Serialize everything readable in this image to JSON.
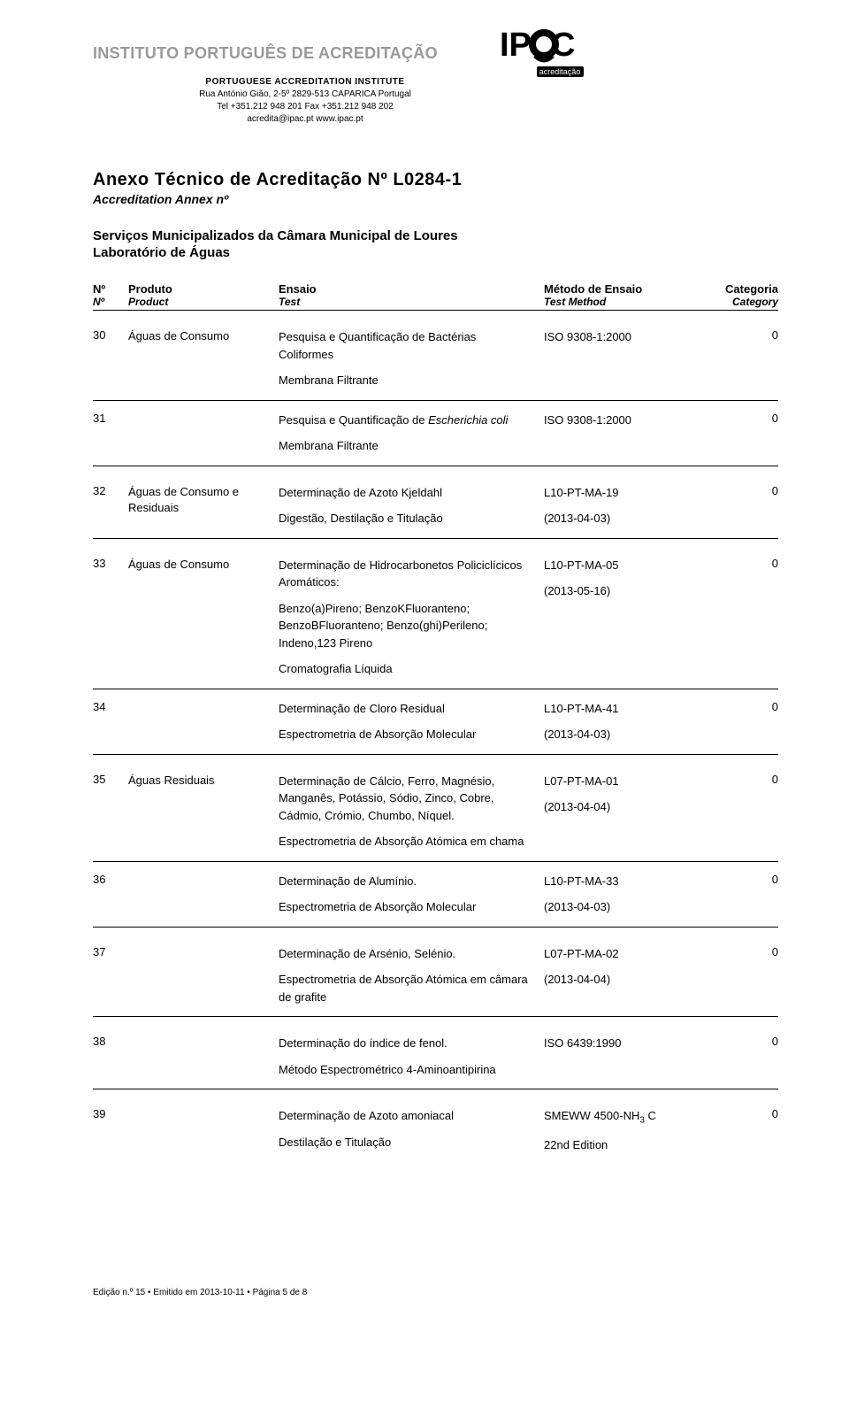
{
  "header": {
    "institute": "INSTITUTO PORTUGUÊS DE ACREDITAÇÃO",
    "subtitle": "PORTUGUESE ACCREDITATION INSTITUTE",
    "addr1": "Rua António Gião, 2-5º 2829-513 CAPARICA Portugal",
    "addr2": "Tel +351.212 948 201 Fax +351.212 948 202",
    "addr3": "acredita@ipac.pt www.ipac.pt",
    "logo_text1": "IP",
    "logo_text2": "C",
    "logo_sub": "acreditação"
  },
  "doc": {
    "title": "Anexo Técnico de Acreditação Nº L0284-1",
    "subtitle": "Accreditation Annex nº",
    "entity1": "Serviços Municipalizados da Câmara Municipal de Loures",
    "entity2": "Laboratório de Águas"
  },
  "th": {
    "n1": "Nº",
    "n2": "Nº",
    "p1": "Produto",
    "p2": "Product",
    "e1": "Ensaio",
    "e2": "Test",
    "m1": "Método de Ensaio",
    "m2": "Test Method",
    "c1": "Categoria",
    "c2": "Category"
  },
  "rows": {
    "r30": {
      "n": "30",
      "p": "Águas de Consumo",
      "t1": "Pesquisa e Quantificação de Bactérias Coliformes",
      "t2": "Membrana Filtrante",
      "m": "ISO 9308-1:2000",
      "c": "0"
    },
    "r31": {
      "n": "31",
      "t1": "Pesquisa e Quantificação de Escherichia coli",
      "t2": "Membrana Filtrante",
      "m": "ISO 9308-1:2000",
      "c": "0"
    },
    "r32": {
      "n": "32",
      "p": "Águas de Consumo e Residuais",
      "t1": "Determinação de Azoto Kjeldahl",
      "t2": "Digestão, Destilação e Titulação",
      "m1": "L10-PT-MA-19",
      "m2": "(2013-04-03)",
      "c": "0"
    },
    "r33": {
      "n": "33",
      "p": "Águas de Consumo",
      "t1": "Determinação de Hidrocarbonetos Policiclícicos Aromáticos:",
      "t2": "Benzo(a)Pireno; BenzoKFluoranteno; BenzoBFluoranteno; Benzo(ghi)Perileno; Indeno,123 Pireno",
      "t3": "Cromatografia Líquida",
      "m1": "L10-PT-MA-05",
      "m2": "(2013-05-16)",
      "c": "0"
    },
    "r34": {
      "n": "34",
      "t1": "Determinação de Cloro Residual",
      "t2": "Espectrometria de Absorção Molecular",
      "m1": "L10-PT-MA-41",
      "m2": "(2013-04-03)",
      "c": "0"
    },
    "r35": {
      "n": "35",
      "p": "Águas Residuais",
      "t1": "Determinação de Cálcio, Ferro, Magnésio, Manganês, Potássio, Sódio, Zinco, Cobre, Cádmio, Crómio, Chumbo, Níquel.",
      "t2": "Espectrometria de Absorção Atómica em chama",
      "m1": "L07-PT-MA-01",
      "m2": "(2013-04-04)",
      "c": "0"
    },
    "r36": {
      "n": "36",
      "t1": "Determinação de Alumínio.",
      "t2": "Espectrometria de Absorção Molecular",
      "m1": "L10-PT-MA-33",
      "m2": "(2013-04-03)",
      "c": "0"
    },
    "r37": {
      "n": "37",
      "t1": "Determinação de Arsénio, Selénio.",
      "t2": "Espectrometria de Absorção Atómica em câmara de grafite",
      "m1": "L07-PT-MA-02",
      "m2": "(2013-04-04)",
      "c": "0"
    },
    "r38": {
      "n": "38",
      "t1": "Determinação do índice de fenol.",
      "t2": "Método Espectrométrico 4-Aminoantipirina",
      "m": "ISO 6439:1990",
      "c": "0"
    },
    "r39": {
      "n": "39",
      "t1": "Determinação de Azoto amoniacal",
      "t2": "Destilação e Titulação",
      "m1": "SMEWW 4500-NH",
      "m1sub": "3",
      "m1tail": " C",
      "m2": "22nd Edition",
      "c": "0"
    }
  },
  "footer": "Edição n.º 15 • Emitido em 2013-10-11 • Página 5 de 8"
}
